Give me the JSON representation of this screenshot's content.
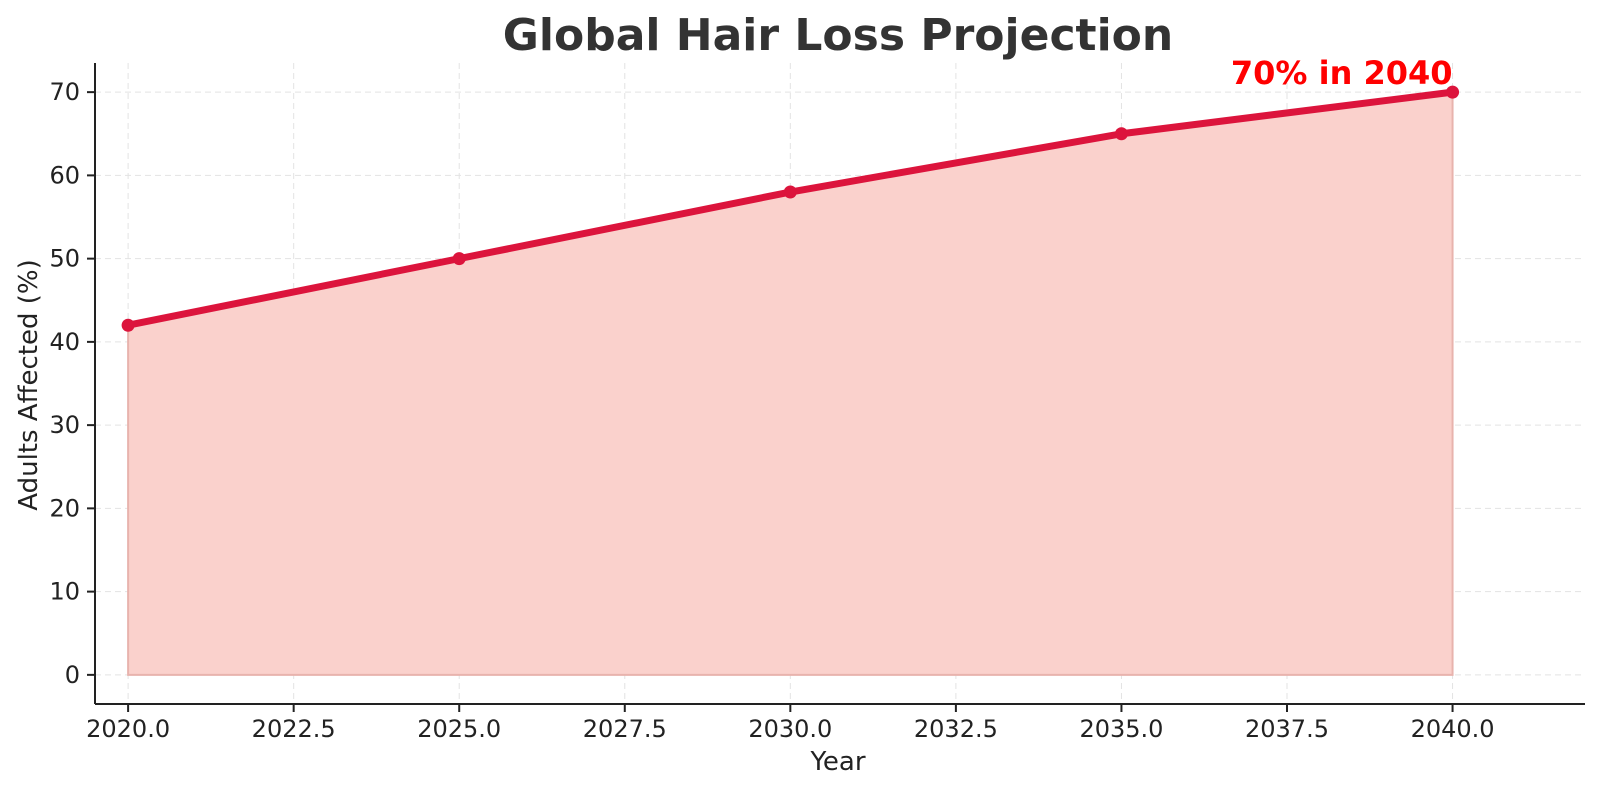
{
  "chart_data": {
    "type": "area",
    "title": "Global Hair Loss Projection",
    "xlabel": "Year",
    "ylabel": "Adults Affected (%)",
    "x": [
      2020,
      2025,
      2030,
      2035,
      2040
    ],
    "values": [
      42,
      50,
      58,
      65,
      70
    ],
    "xlim": [
      2019.5,
      2042
    ],
    "ylim": [
      -3.5,
      73.5
    ],
    "x_ticks": [
      2020,
      2022.5,
      2025,
      2027.5,
      2030,
      2032.5,
      2035,
      2037.5,
      2040
    ],
    "x_tick_labels": [
      "2020.0",
      "2022.5",
      "2025.0",
      "2027.5",
      "2030.0",
      "2032.5",
      "2035.0",
      "2037.5",
      "2040.0"
    ],
    "y_ticks": [
      0,
      10,
      20,
      30,
      40,
      50,
      60,
      70
    ],
    "y_tick_labels": [
      "0",
      "10",
      "20",
      "30",
      "40",
      "50",
      "60",
      "70"
    ],
    "grid": true,
    "annotation": {
      "text": "70% in 2040",
      "x": 2040,
      "y": 70,
      "color": "#ff0000"
    },
    "colors": {
      "line": "#dc143c",
      "fill": "#fad1cc",
      "fill_edge": "#e8b3ad"
    }
  }
}
